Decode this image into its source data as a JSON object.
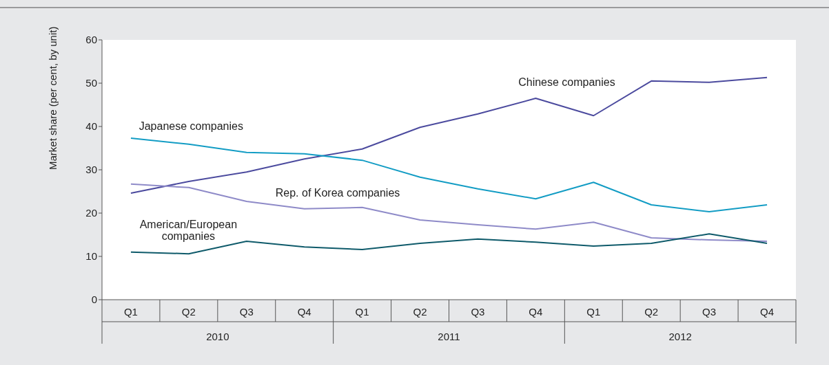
{
  "chart_data": {
    "type": "line",
    "ylabel": "Market share (per cent, by unit)",
    "categories": [
      "Q1",
      "Q2",
      "Q3",
      "Q4",
      "Q1",
      "Q2",
      "Q3",
      "Q4",
      "Q1",
      "Q2",
      "Q3",
      "Q4"
    ],
    "series": [
      {
        "name": "Chinese companies",
        "color": "#4b4a9e",
        "values": [
          24.6,
          27.3,
          29.5,
          32.5,
          34.8,
          39.8,
          42.9,
          46.5,
          42.5,
          50.5,
          50.2,
          51.3
        ]
      },
      {
        "name": "Japanese companies",
        "color": "#129cc4",
        "values": [
          37.3,
          35.9,
          34.0,
          33.7,
          32.2,
          28.3,
          25.6,
          23.3,
          27.1,
          21.9,
          20.3,
          21.9
        ]
      },
      {
        "name": "Rep. of Korea companies",
        "color": "#8e8ac8",
        "values": [
          26.7,
          25.9,
          22.7,
          21.0,
          21.3,
          18.4,
          17.3,
          16.3,
          17.9,
          14.3,
          13.8,
          13.5
        ]
      },
      {
        "name": "American/European companies",
        "color": "#0e5a6a",
        "values": [
          11.0,
          10.6,
          13.5,
          12.2,
          11.6,
          13.0,
          14.0,
          13.3,
          12.4,
          13.0,
          15.2,
          13.0
        ]
      }
    ],
    "annotations": [
      "2010",
      "2011",
      "2012"
    ],
    "ylim": [
      0,
      60
    ],
    "yticks": [
      0,
      10,
      20,
      30,
      40,
      50,
      60
    ],
    "grid": false,
    "legend": false,
    "marker": "none",
    "line_style": "solid"
  }
}
